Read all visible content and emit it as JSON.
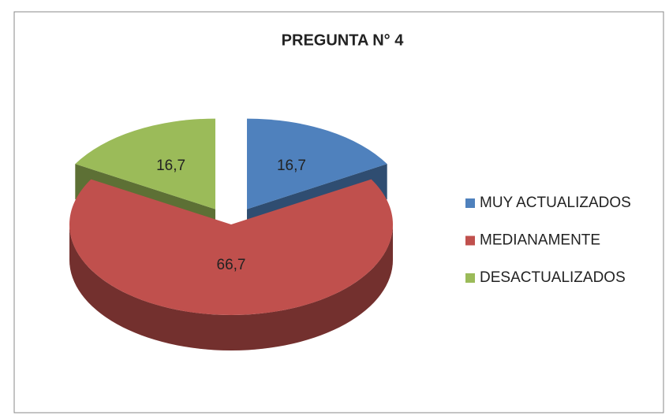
{
  "chart_data": {
    "type": "pie",
    "title": "PREGUNTA N°  4",
    "categories": [
      "MUY ACTUALIZADOS",
      "MEDIANAMENTE",
      "DESACTUALIZADOS"
    ],
    "values": [
      16.7,
      66.7,
      16.7
    ],
    "value_labels": [
      "16,7",
      "66,7",
      "16,7"
    ],
    "colors": [
      "#4f81bd",
      "#c0504d",
      "#9bbb59"
    ],
    "legend": "right"
  }
}
